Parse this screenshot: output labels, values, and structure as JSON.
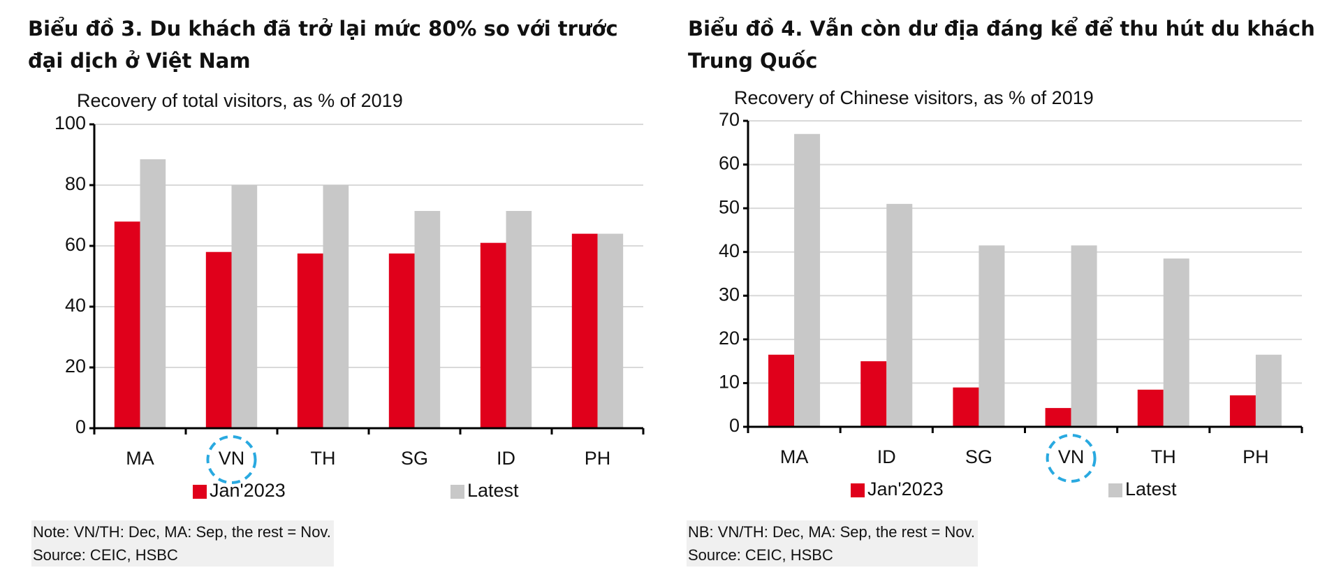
{
  "chart_data": [
    {
      "type": "bar",
      "title": "Biểu đồ 3. Du khách đã trở lại mức 80% so với trước đại dịch ở Việt Nam",
      "subtitle": "Recovery of total visitors, as % of 2019",
      "categories": [
        "MA",
        "VN",
        "TH",
        "SG",
        "ID",
        "PH"
      ],
      "series": [
        {
          "name": "Jan'2023",
          "color": "#e0001b",
          "values": [
            68,
            58,
            57.5,
            57.5,
            61,
            64
          ]
        },
        {
          "name": "Latest",
          "color": "#c8c8c8",
          "values": [
            88.5,
            80,
            80,
            71.5,
            71.5,
            64
          ]
        }
      ],
      "ylim": [
        0,
        100
      ],
      "yticks": [
        0,
        20,
        40,
        60,
        80,
        100
      ],
      "grid": true,
      "highlight": "VN",
      "note": "Note: VN/TH: Dec, MA: Sep, the rest = Nov.",
      "source": "Source: CEIC, HSBC"
    },
    {
      "type": "bar",
      "title": "Biểu đồ 4. Vẫn còn dư địa đáng kể để thu hút du khách Trung Quốc",
      "subtitle": "Recovery of Chinese visitors, as % of 2019",
      "categories": [
        "MA",
        "ID",
        "SG",
        "VN",
        "TH",
        "PH"
      ],
      "series": [
        {
          "name": "Jan'2023",
          "color": "#e0001b",
          "values": [
            16.5,
            15,
            9,
            4.3,
            8.5,
            7.2
          ]
        },
        {
          "name": "Latest",
          "color": "#c8c8c8",
          "values": [
            67,
            51,
            41.5,
            41.5,
            38.5,
            16.5
          ]
        }
      ],
      "ylim": [
        0,
        70
      ],
      "yticks": [
        0,
        10,
        20,
        30,
        40,
        50,
        60,
        70
      ],
      "grid": true,
      "highlight": "VN",
      "note": "NB: VN/TH: Dec, MA: Sep, the rest = Nov.",
      "source": "Source: CEIC, HSBC"
    }
  ]
}
